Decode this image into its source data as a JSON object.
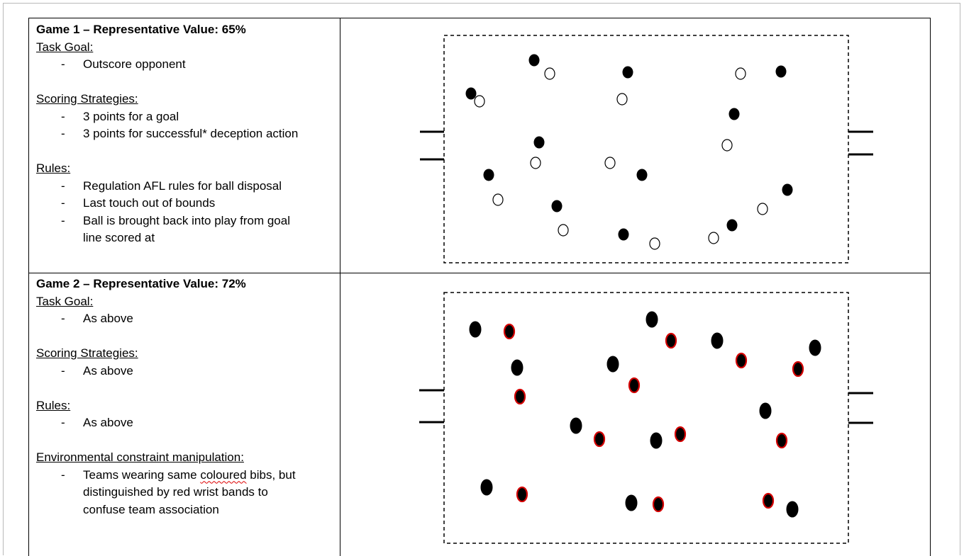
{
  "game1": {
    "title": "Game 1 – Representative Value: 65%",
    "task_goal": {
      "heading": "Task Goal:",
      "items": [
        "Outscore opponent"
      ]
    },
    "scoring": {
      "heading": "Scoring Strategies:",
      "items": [
        "3 points for a goal",
        "3 points for successful* deception action"
      ]
    },
    "rules": {
      "heading": "Rules:",
      "items": [
        "Regulation AFL rules for ball disposal",
        "Last touch out of bounds",
        "Ball is brought back into play from goal",
        "line scored at"
      ]
    }
  },
  "game2": {
    "title": "Game 2 – Representative Value: 72%",
    "task_goal": {
      "heading": "Task Goal:",
      "items": [
        "As above"
      ]
    },
    "scoring": {
      "heading": "Scoring Strategies:",
      "items": [
        "As above"
      ]
    },
    "rules": {
      "heading": "Rules:",
      "items": [
        "As above"
      ]
    },
    "environment": {
      "heading": "Environmental constraint manipulation:",
      "line1_a": "Teams wearing same ",
      "line1_misspelled": "coloured",
      "line1_b": " bibs, but",
      "line2": "distinguished by red wrist bands to",
      "line3": "confuse team association"
    }
  },
  "bullet_dash": "-",
  "colors": {
    "team_black": "#000000",
    "team_white": "#ffffff",
    "wrist_band": "#d40000",
    "grid_line": "#000000"
  }
}
